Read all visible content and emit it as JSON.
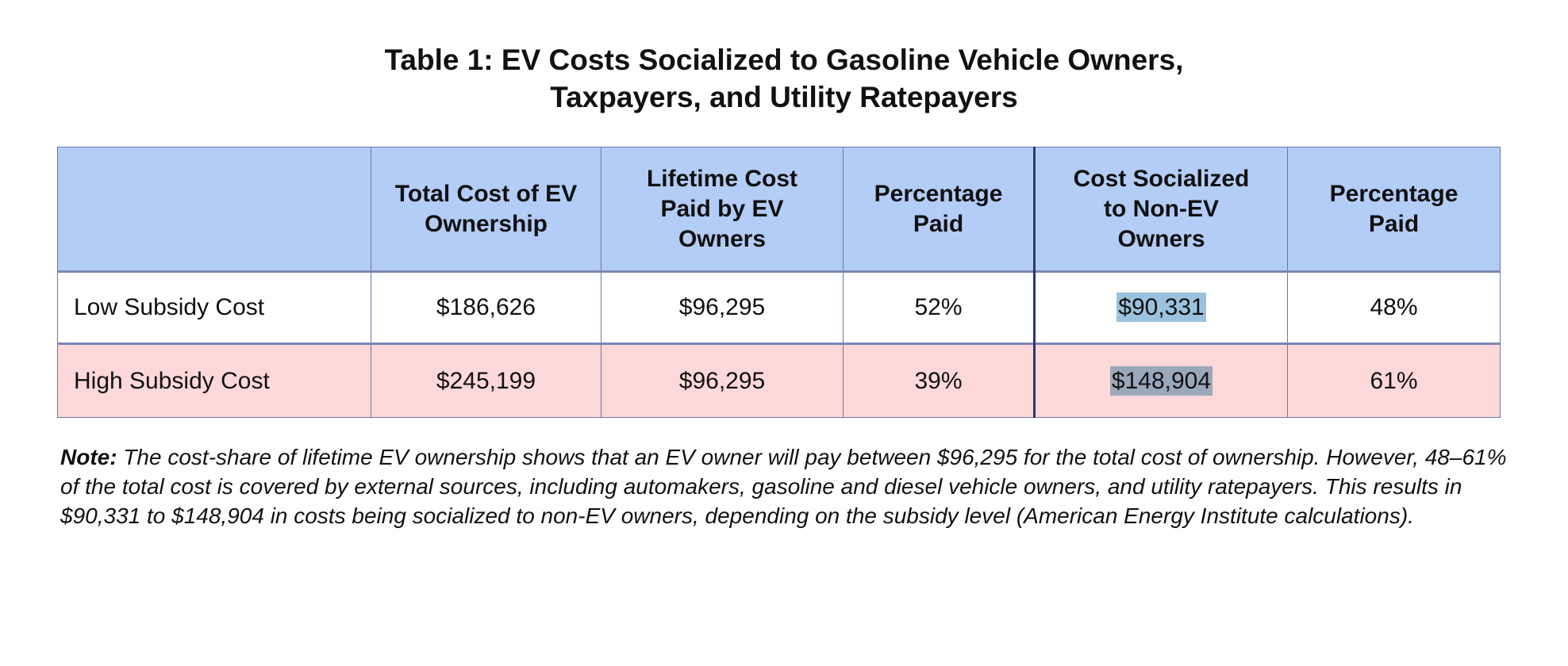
{
  "title": {
    "line1": "Table 1: EV Costs Socialized to Gasoline Vehicle Owners,",
    "line2": "Taxpayers, and Utility Ratepayers"
  },
  "table": {
    "headers": [
      "",
      "Total Cost of EV Ownership",
      "Lifetime Cost Paid by EV Owners",
      "Percentage Paid",
      "Cost Socialized to Non-EV Owners",
      "Percentage Paid"
    ],
    "rows": [
      [
        "Low Subsidy Cost",
        "$186,626",
        "$96,295",
        "52%",
        "$90,331",
        "48%"
      ],
      [
        "High Subsidy Cost",
        "$245,199",
        "$96,295",
        "39%",
        "$148,904",
        "61%"
      ]
    ]
  },
  "colors": {
    "header": "#b3cdf7",
    "high_row": "#fdd8d8",
    "highlight_low": "#9bc2dc",
    "highlight_high": "#9aa8bb"
  },
  "note": {
    "label": "Note:",
    "text": " The cost-share of lifetime EV ownership shows that an EV owner will pay between $96,295 for the total cost of ownership. However, 48–61% of the total cost is covered by external sources, including automakers, gasoline and diesel vehicle owners, and utility ratepayers. This results in $90,331 to $148,904 in costs being socialized to non-EV owners, depending on the subsidy level (American Energy Institute calculations)."
  }
}
